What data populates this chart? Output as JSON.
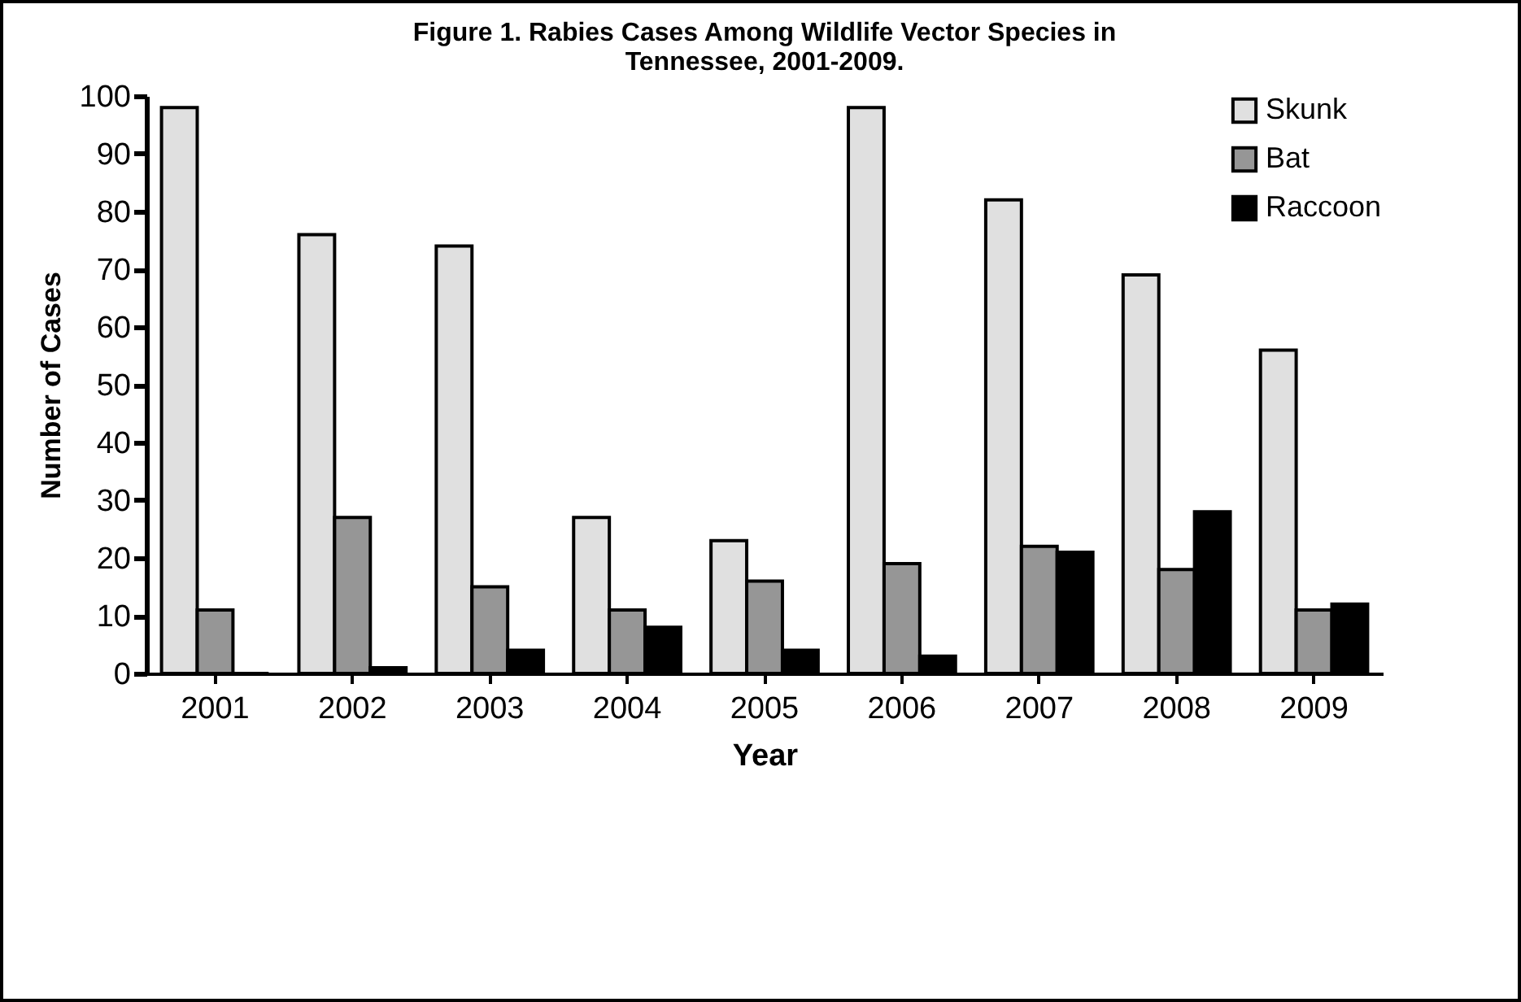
{
  "chart_data": {
    "type": "bar",
    "title": [
      "Figure 1. Rabies Cases Among Wildlife Vector Species in",
      "Tennessee, 2001-2009."
    ],
    "xlabel": "Year",
    "ylabel": "Number of Cases",
    "categories": [
      "2001",
      "2002",
      "2003",
      "2004",
      "2005",
      "2006",
      "2007",
      "2008",
      "2009"
    ],
    "series": [
      {
        "name": "Skunk",
        "color": "#e0e0e0",
        "values": [
          98,
          76,
          74,
          27,
          23,
          98,
          82,
          69,
          56
        ]
      },
      {
        "name": "Bat",
        "color": "#969696",
        "values": [
          11,
          27,
          15,
          11,
          16,
          19,
          22,
          18,
          11
        ]
      },
      {
        "name": "Raccoon",
        "color": "#000000",
        "values": [
          0,
          1,
          4,
          8,
          4,
          3,
          21,
          28,
          12
        ]
      }
    ],
    "ylim": [
      0,
      100
    ],
    "yticks": [
      0,
      10,
      20,
      30,
      40,
      50,
      60,
      70,
      80,
      90,
      100
    ],
    "grid": false,
    "legend": "top right"
  }
}
